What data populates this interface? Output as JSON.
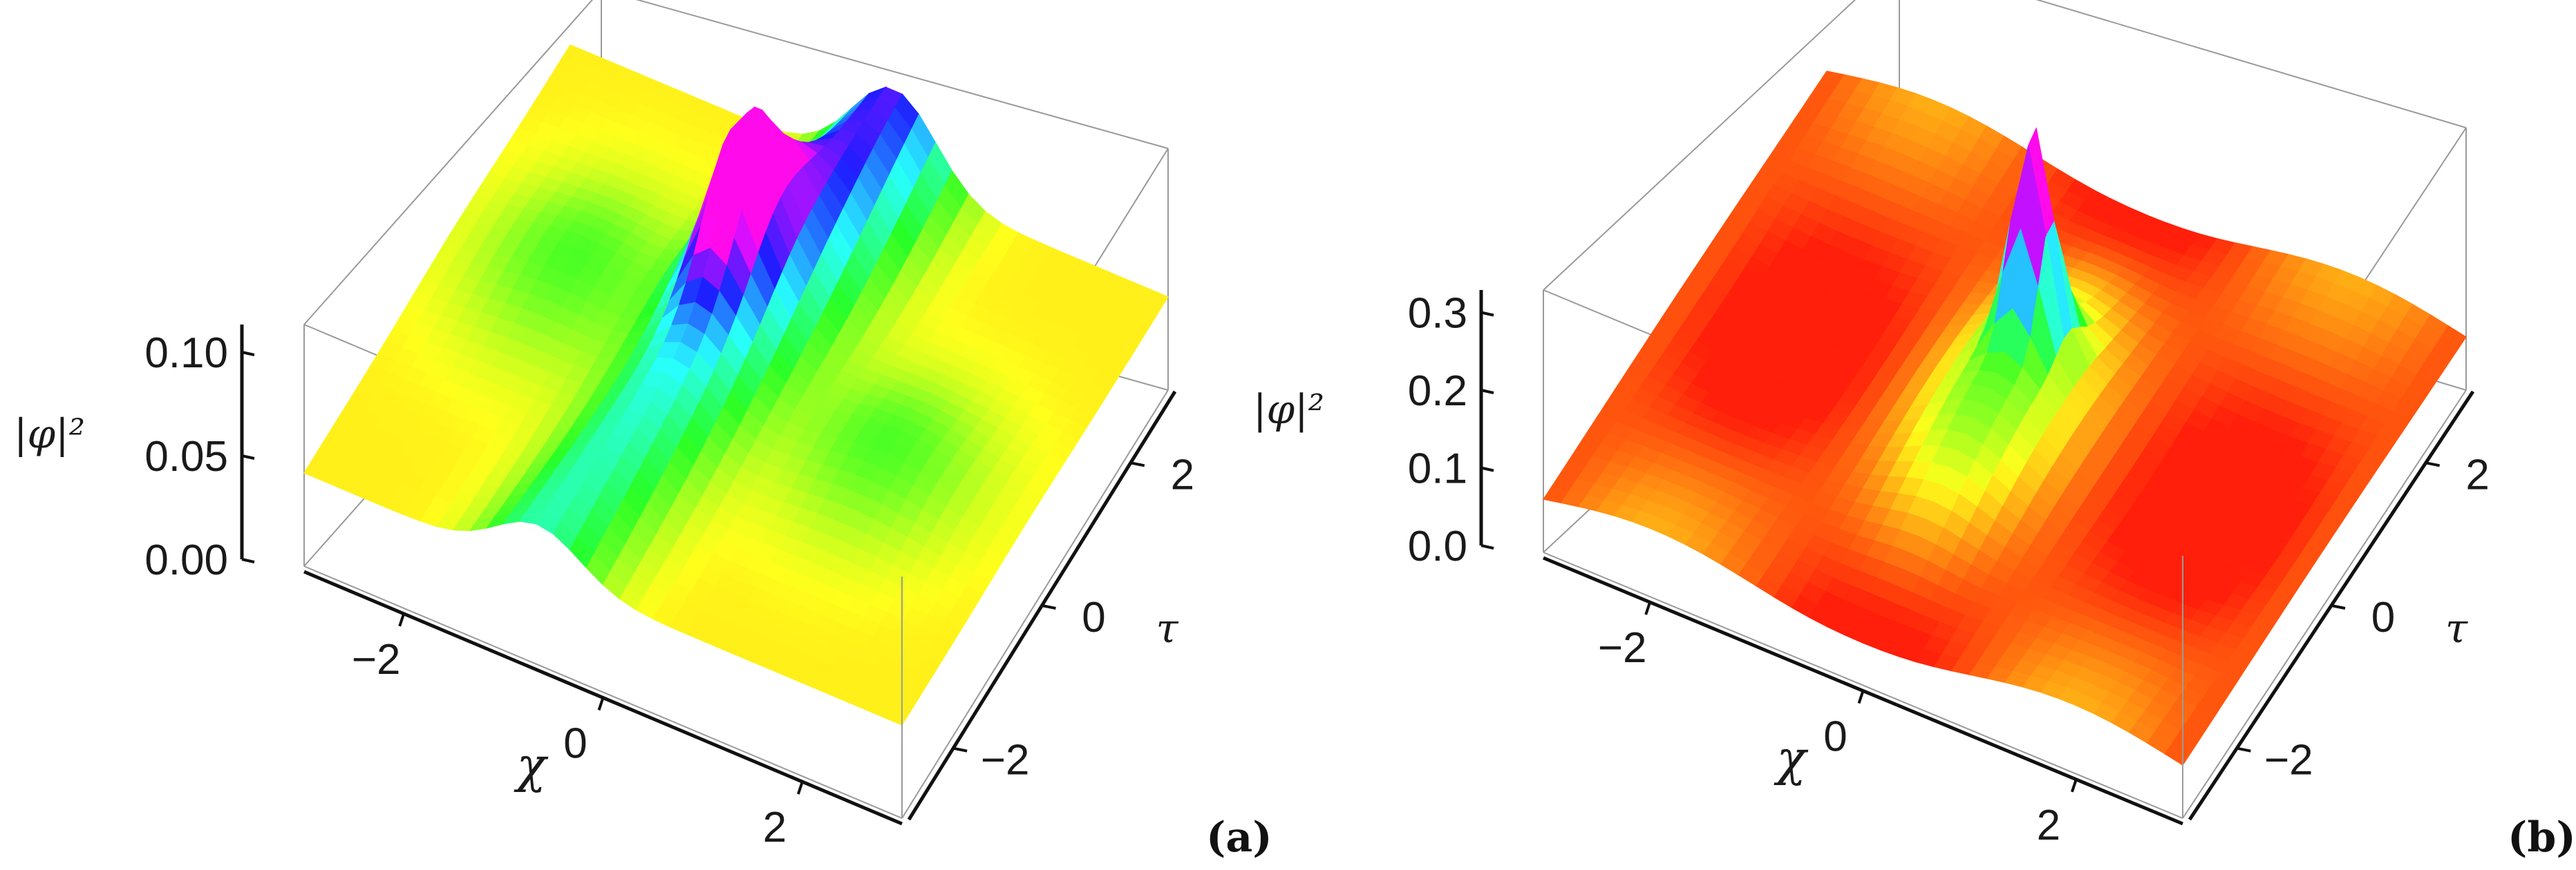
{
  "chart_data": [
    {
      "panel_label": "(a)",
      "type": "surface3d",
      "xlabel": "χ",
      "ylabel": "τ",
      "zlabel": "|φ|²",
      "xlim": [
        -3,
        3
      ],
      "ylim": [
        -3,
        3
      ],
      "zlim": [
        0,
        0.11
      ],
      "x_ticks": [
        "−2",
        "0",
        "2"
      ],
      "y_ticks": [
        "−2",
        "0",
        "2"
      ],
      "z_ticks": [
        "0.00",
        "0.05",
        "0.10"
      ],
      "peak": {
        "chi": -0.4,
        "tau": 1.0,
        "value": 0.1
      },
      "background_level": 0.045,
      "colormap": "hue (red → orange → yellow → green → cyan → blue → magenta)"
    },
    {
      "panel_label": "(b)",
      "type": "surface3d",
      "xlabel": "χ",
      "ylabel": "τ",
      "zlabel": "|φ|²",
      "xlim": [
        -3,
        3
      ],
      "ylim": [
        -3,
        3
      ],
      "zlim": [
        0,
        0.32
      ],
      "x_ticks": [
        "−2",
        "0",
        "2"
      ],
      "y_ticks": [
        "−2",
        "0",
        "2"
      ],
      "z_ticks": [
        "0.0",
        "0.1",
        "0.2",
        "0.3"
      ],
      "peak": {
        "chi": 0.0,
        "tau": 0.6,
        "value": 0.3
      },
      "background_level": 0.08,
      "colormap": "hue (red → orange → yellow → green → cyan → blue → magenta)"
    }
  ]
}
